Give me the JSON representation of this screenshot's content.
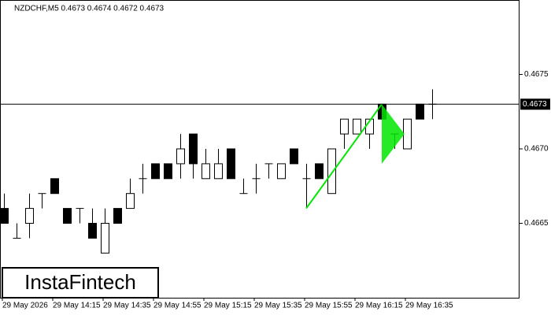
{
  "chart_data": {
    "type": "candlestick",
    "title": "NZDCHF,M5  0.4673 0.4674 0.4672 0.4673",
    "categories": [
      "29 May 2026",
      null,
      null,
      null,
      "29 May 14:15",
      null,
      null,
      null,
      "29 May 14:35",
      null,
      null,
      null,
      "29 May 14:55",
      null,
      null,
      null,
      "29 May 15:15",
      null,
      null,
      null,
      "29 May 15:35",
      null,
      null,
      null,
      "29 May 15:55",
      null,
      null,
      null,
      "29 May 16:15",
      null,
      null,
      null,
      "29 May 16:35",
      null,
      null
    ],
    "open": [
      0.4666,
      0.4664,
      0.4665,
      0.4667,
      0.4668,
      0.4666,
      0.4666,
      0.4665,
      0.4663,
      0.4666,
      0.4666,
      0.4668,
      0.4669,
      0.4669,
      0.4669,
      0.4671,
      0.4668,
      0.4668,
      0.467,
      0.4667,
      0.4668,
      0.4669,
      0.4668,
      0.467,
      0.4668,
      0.4669,
      0.4667,
      0.4671,
      0.4671,
      0.4671,
      0.4673,
      0.4671,
      0.467,
      0.4673,
      0.4673
    ],
    "high": [
      0.4667,
      0.4665,
      0.4667,
      0.4667,
      0.4668,
      0.4666,
      0.4666,
      0.4666,
      0.4666,
      0.4666,
      0.4668,
      0.4669,
      0.4669,
      0.4669,
      0.4671,
      0.4671,
      0.467,
      0.467,
      0.467,
      0.4668,
      0.4669,
      0.4669,
      0.4669,
      0.467,
      0.4669,
      0.4669,
      0.467,
      0.4672,
      0.4672,
      0.4672,
      0.4673,
      0.4671,
      0.4672,
      0.4673,
      0.4674
    ],
    "low": [
      0.4665,
      0.4664,
      0.4664,
      0.4666,
      0.4667,
      0.4665,
      0.4665,
      0.4664,
      0.4663,
      0.4665,
      0.4666,
      0.4667,
      0.4668,
      0.4668,
      0.4668,
      0.4668,
      0.4668,
      0.4668,
      0.4668,
      0.4667,
      0.4667,
      0.4668,
      0.4668,
      0.4669,
      0.4666,
      0.4668,
      0.4667,
      0.467,
      0.4671,
      0.467,
      0.4672,
      0.467,
      0.467,
      0.4672,
      0.4672
    ],
    "close": [
      0.4665,
      0.4664,
      0.4666,
      0.4667,
      0.4667,
      0.4665,
      0.4666,
      0.4664,
      0.4665,
      0.4665,
      0.4667,
      0.4668,
      0.4668,
      0.4668,
      0.467,
      0.4669,
      0.4669,
      0.4669,
      0.4668,
      0.4667,
      0.4668,
      0.4669,
      0.4669,
      0.4669,
      0.4668,
      0.4668,
      0.467,
      0.4672,
      0.4672,
      0.4672,
      0.4672,
      0.4671,
      0.4672,
      0.4672,
      0.4673
    ],
    "ylim": [
      0.466,
      0.468
    ],
    "yticks": [
      0.4665,
      {
        "value": 0.467,
        "label": "0.4670"
      },
      0.4675
    ],
    "current_price": 0.4673,
    "pattern": {
      "pole": [
        0.4666,
        0.4673
      ],
      "pole_index": [
        24,
        30
      ],
      "pennant": [
        0.4673,
        0.4669,
        0.4671
      ],
      "pennant_index": [
        30,
        30,
        31.8
      ],
      "color": "#00e600"
    },
    "logo": "InstaFintech"
  }
}
